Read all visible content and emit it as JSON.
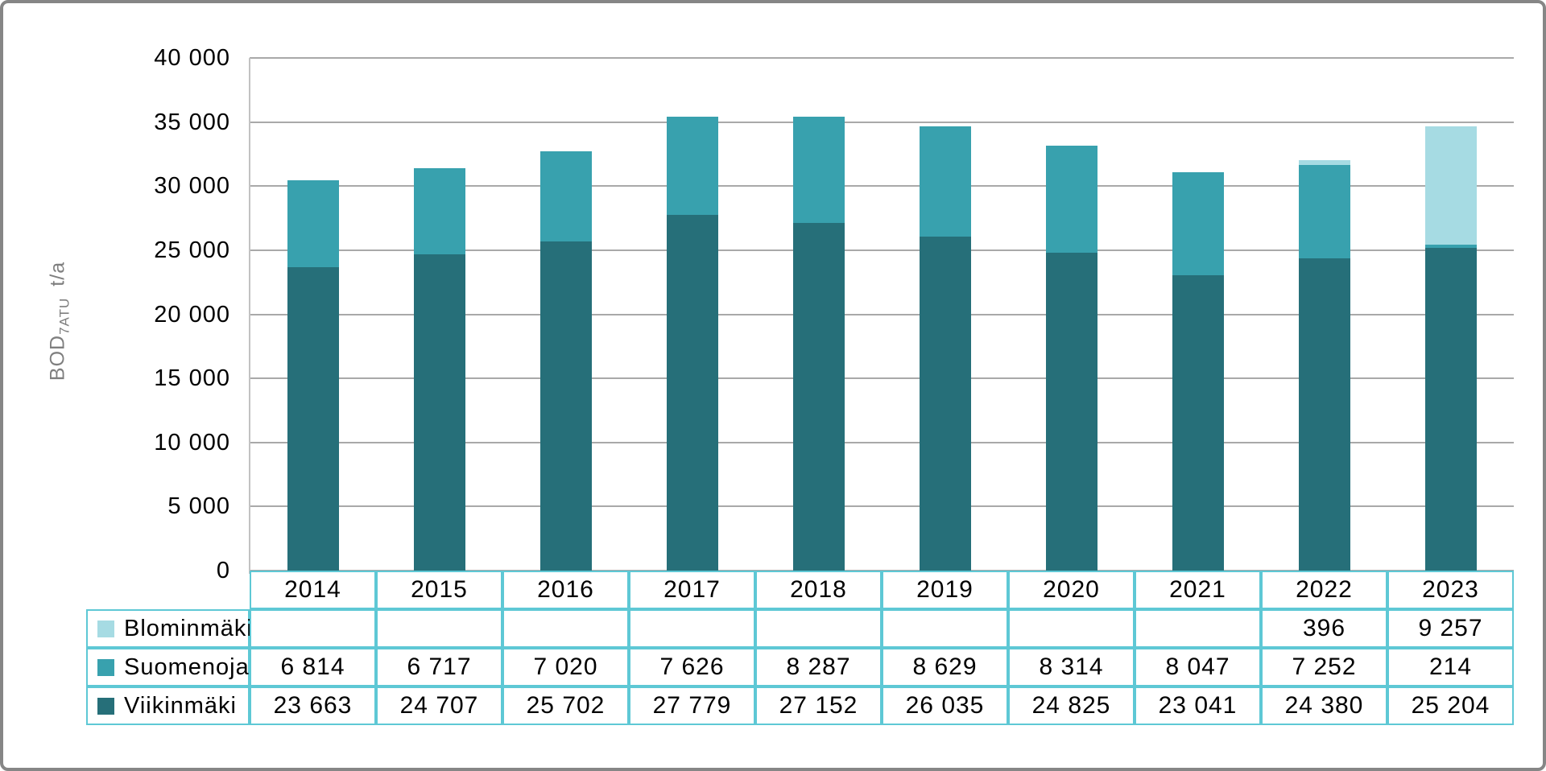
{
  "chart_data": {
    "type": "bar",
    "stacked": true,
    "categories": [
      "2014",
      "2015",
      "2016",
      "2017",
      "2018",
      "2019",
      "2020",
      "2021",
      "2022",
      "2023"
    ],
    "series": [
      {
        "name": "Blominmäki",
        "color": "#a6dbe3",
        "values": [
          0,
          0,
          0,
          0,
          0,
          0,
          0,
          0,
          396,
          9257
        ],
        "display": [
          "",
          "",
          "",
          "",
          "",
          "",
          "",
          "",
          "396",
          "9 257"
        ]
      },
      {
        "name": "Suomenoja",
        "color": "#38a1ae",
        "values": [
          6814,
          6717,
          7020,
          7626,
          8287,
          8629,
          8314,
          8047,
          7252,
          214
        ],
        "display": [
          "6 814",
          "6 717",
          "7 020",
          "7 626",
          "8 287",
          "8 629",
          "8 314",
          "8 047",
          "7 252",
          "214"
        ]
      },
      {
        "name": "Viikinmäki",
        "color": "#266f79",
        "values": [
          23663,
          24707,
          25702,
          27779,
          27152,
          26035,
          24825,
          23041,
          24380,
          25204
        ],
        "display": [
          "23 663",
          "24 707",
          "25 702",
          "27 779",
          "27 152",
          "26 035",
          "24 825",
          "23 041",
          "24 380",
          "25 204"
        ]
      }
    ],
    "ylabel": {
      "main": "BOD",
      "sub": "7ATU",
      "unit": "t/a"
    },
    "ylim": [
      0,
      40000
    ],
    "ytick_step": 5000,
    "ytick_labels": [
      "0",
      "5 000",
      "10 000",
      "15 000",
      "20 000",
      "25 000",
      "30 000",
      "35 000",
      "40 000"
    ],
    "grid": true,
    "legend_position": "table-left"
  },
  "colors": {
    "grid": "#a9a9a9",
    "axis": "#c2c2c2",
    "table_border": "#5ec8d5",
    "frame_border": "#868686",
    "axis_title": "#7f7f7f",
    "text": "#000000"
  }
}
